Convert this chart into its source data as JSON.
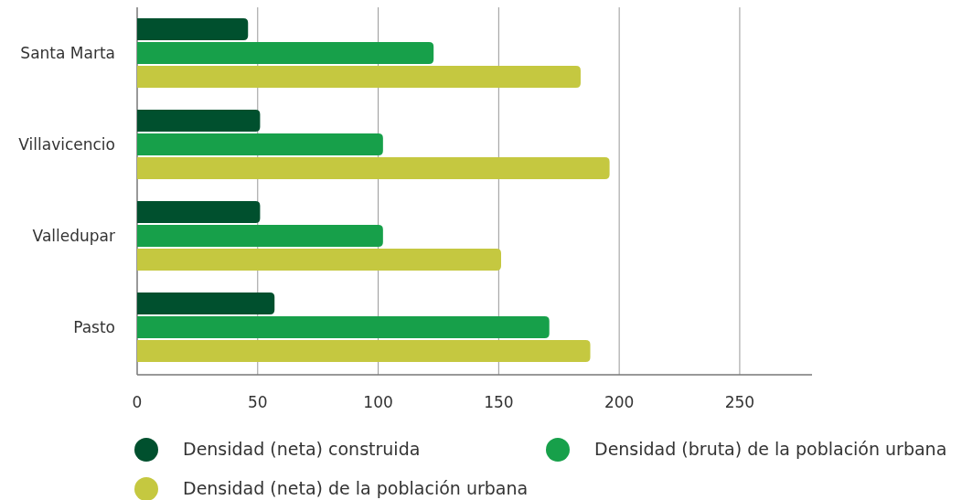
{
  "chart_data": {
    "type": "bar",
    "orientation": "horizontal",
    "categories": [
      "Santa Marta",
      "Villavicencio",
      "Valledupar",
      "Pasto"
    ],
    "series": [
      {
        "name": "Densidad (neta) construida",
        "color": "#00502e",
        "values": [
          46,
          51,
          51,
          57
        ]
      },
      {
        "name": "Densidad (bruta) de la población urbana",
        "color": "#17a04a",
        "values": [
          123,
          102,
          102,
          171
        ]
      },
      {
        "name": "Densidad (neta) de la población urbana",
        "color": "#c5c840",
        "values": [
          184,
          196,
          151,
          188
        ]
      }
    ],
    "xlim": [
      0,
      280
    ],
    "xticks": [
      0,
      50,
      100,
      150,
      200,
      250
    ],
    "grid": "x",
    "legend": "bottom"
  }
}
